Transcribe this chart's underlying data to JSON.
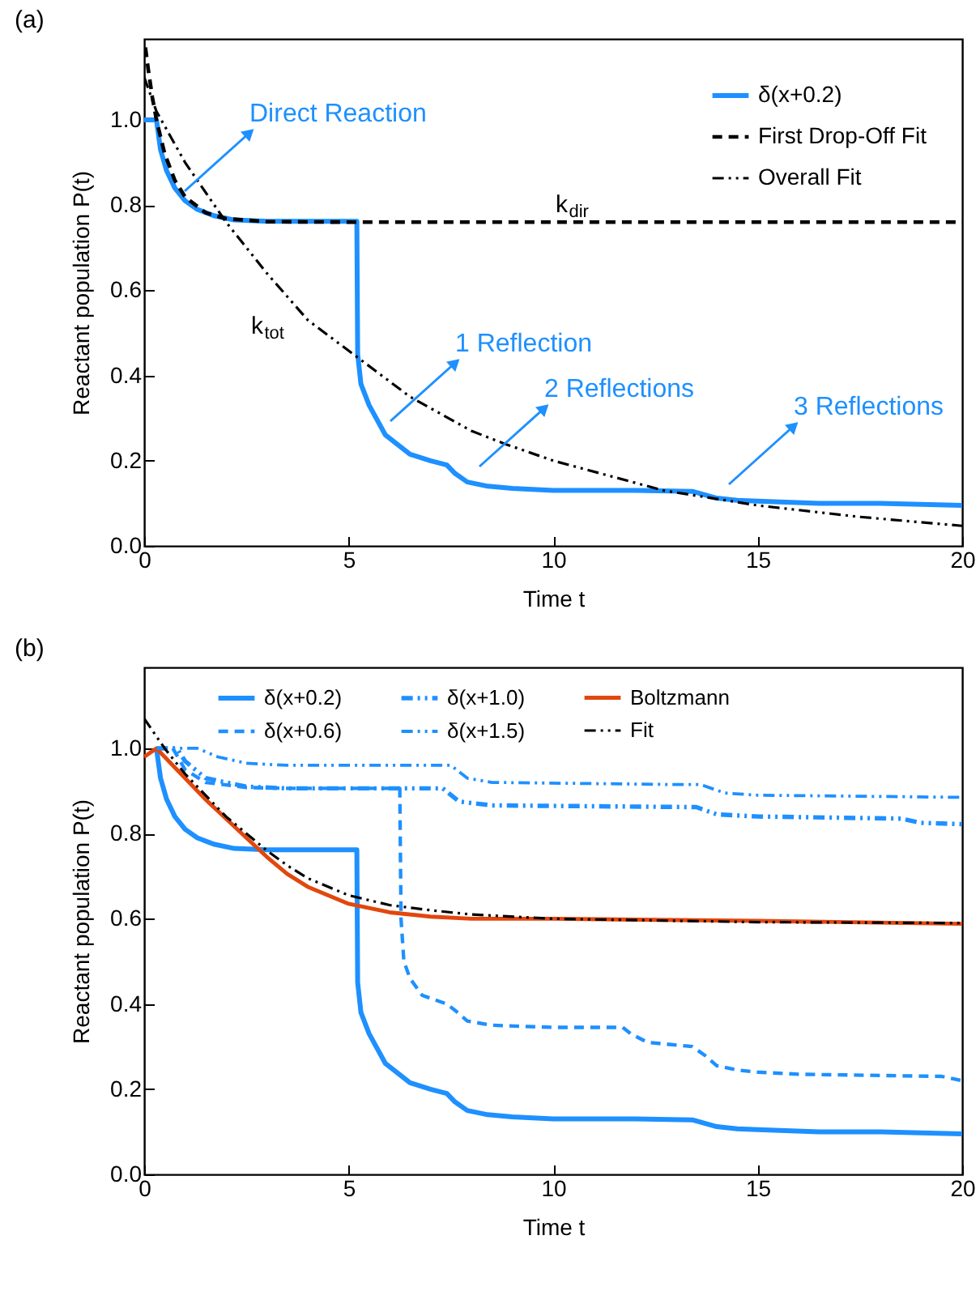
{
  "chart_data": [
    {
      "type": "line",
      "title": "(a)",
      "xlabel": "Time  t",
      "ylabel": "Reactant population  P(t)",
      "xlim": [
        0,
        20
      ],
      "ylim": [
        0,
        1.19
      ],
      "xticks": [
        0,
        5,
        10,
        15,
        20
      ],
      "yticks": [
        {
          "value": 0,
          "label": "0.0"
        },
        {
          "value": 0.2,
          "label": "0.2"
        },
        {
          "value": 0.4,
          "label": "0.4"
        },
        {
          "value": 0.6,
          "label": "0.6"
        },
        {
          "value": 0.8,
          "label": "0.8"
        },
        {
          "value": 1,
          "label": "1.0"
        }
      ],
      "legend": "top right",
      "series": [
        {
          "name": "δ(x+0.2)",
          "color": "#1e90ff",
          "line_style": "solid",
          "x": [
            0,
            0.3,
            0.4,
            0.55,
            0.75,
            1.0,
            1.3,
            1.7,
            2.2,
            3,
            5.2,
            5.22,
            5.3,
            5.5,
            5.9,
            6.5,
            7.0,
            7.4,
            7.6,
            7.9,
            8.4,
            9,
            10,
            12,
            13.4,
            13.7,
            14.0,
            14.5,
            15,
            16.5,
            18,
            20
          ],
          "values": [
            1.0,
            1.0,
            0.93,
            0.88,
            0.84,
            0.81,
            0.79,
            0.775,
            0.765,
            0.762,
            0.762,
            0.45,
            0.38,
            0.33,
            0.26,
            0.215,
            0.2,
            0.19,
            0.17,
            0.15,
            0.14,
            0.135,
            0.13,
            0.13,
            0.128,
            0.12,
            0.112,
            0.107,
            0.105,
            0.1,
            0.1,
            0.095
          ]
        },
        {
          "name": "First Drop-Off Fit",
          "color": "#000000",
          "line_style": "dashed",
          "x": [
            0.03,
            0.1,
            0.2,
            0.3,
            0.5,
            0.75,
            1,
            1.5,
            2,
            3,
            5,
            10,
            20
          ],
          "values": [
            1.17,
            1.118,
            1.053,
            1.0,
            0.921,
            0.858,
            0.819,
            0.782,
            0.768,
            0.761,
            0.76,
            0.76,
            0.76
          ]
        },
        {
          "name": "Overall Fit",
          "color": "#000000",
          "line_style": "dotted",
          "x": [
            0,
            0.3,
            1,
            2,
            3,
            4,
            5.25,
            6.5,
            8,
            8.8,
            10,
            12.7,
            15,
            17.5,
            20
          ],
          "values": [
            1.1,
            1.02,
            0.9,
            0.76,
            0.64,
            0.53,
            0.44,
            0.35,
            0.27,
            0.24,
            0.2,
            0.13,
            0.095,
            0.068,
            0.047
          ]
        }
      ],
      "annotations": [
        "Direct Reaction",
        "1 Reflection",
        "2 Reflections",
        "3 Reflections",
        "k$_{dir}$",
        "k$_{tot}$"
      ]
    },
    {
      "type": "line",
      "title": "(b)",
      "xlabel": "Time  t",
      "ylabel": "Reactant population  P(t)",
      "xlim": [
        0,
        20
      ],
      "ylim": [
        0,
        1.19
      ],
      "xticks": [
        0,
        5,
        10,
        15,
        20
      ],
      "yticks": [
        {
          "value": 0,
          "label": "0.0"
        },
        {
          "value": 0.2,
          "label": "0.2"
        },
        {
          "value": 0.4,
          "label": "0.4"
        },
        {
          "value": 0.6,
          "label": "0.6"
        },
        {
          "value": 0.8,
          "label": "0.8"
        },
        {
          "value": 1,
          "label": "1.0"
        }
      ],
      "legend": "top",
      "series": [
        {
          "name": "δ(x+0.2)",
          "color": "#1e90ff",
          "line_style": "solid",
          "x": [
            0.3,
            0.4,
            0.55,
            0.75,
            1.0,
            1.3,
            1.7,
            2.2,
            3,
            5.2,
            5.22,
            5.3,
            5.5,
            5.9,
            6.5,
            7.0,
            7.4,
            7.6,
            7.9,
            8.4,
            9,
            10,
            12,
            13.4,
            13.7,
            14.0,
            14.5,
            15,
            16.5,
            18,
            20
          ],
          "values": [
            1.0,
            0.93,
            0.88,
            0.84,
            0.81,
            0.79,
            0.775,
            0.765,
            0.762,
            0.762,
            0.45,
            0.38,
            0.33,
            0.26,
            0.215,
            0.2,
            0.19,
            0.17,
            0.15,
            0.14,
            0.135,
            0.13,
            0.13,
            0.128,
            0.12,
            0.112,
            0.107,
            0.105,
            0.1,
            0.1,
            0.095
          ]
        },
        {
          "name": "δ(x+1.0)",
          "color": "#1e90ff",
          "line_style": "dotted",
          "x": [
            0.3,
            0.8,
            1.0,
            1.5,
            2.5,
            3.5,
            7.3,
            7.7,
            8.5,
            13.5,
            14,
            15,
            18.5,
            19,
            20
          ],
          "values": [
            1.0,
            1.0,
            0.97,
            0.93,
            0.91,
            0.906,
            0.906,
            0.875,
            0.866,
            0.862,
            0.845,
            0.84,
            0.835,
            0.825,
            0.822
          ]
        },
        {
          "name": "Boltzmann",
          "color": "#e2470e",
          "line_style": "solid",
          "x": [
            0,
            0.3,
            0.6,
            1,
            1.5,
            2,
            2.5,
            3,
            3.5,
            4,
            4.5,
            5,
            6,
            7,
            8,
            10,
            15,
            20
          ],
          "values": [
            0.98,
            1.0,
            0.97,
            0.93,
            0.88,
            0.835,
            0.79,
            0.745,
            0.705,
            0.675,
            0.655,
            0.635,
            0.615,
            0.605,
            0.6,
            0.6,
            0.595,
            0.588
          ]
        },
        {
          "name": "δ(x+0.6)",
          "color": "#1e90ff",
          "line_style": "dashed",
          "x": [
            0.3,
            0.7,
            1.0,
            1.5,
            2.5,
            3.5,
            6.25,
            6.28,
            6.35,
            6.5,
            6.8,
            7.4,
            7.6,
            7.9,
            8.5,
            10,
            11.7,
            11.9,
            12.3,
            13.4,
            13.7,
            14,
            14.5,
            15,
            16,
            19.5,
            20
          ],
          "values": [
            1.0,
            1.0,
            0.95,
            0.92,
            0.908,
            0.906,
            0.906,
            0.6,
            0.5,
            0.46,
            0.42,
            0.4,
            0.385,
            0.36,
            0.35,
            0.345,
            0.345,
            0.33,
            0.31,
            0.3,
            0.28,
            0.255,
            0.245,
            0.24,
            0.235,
            0.23,
            0.22
          ]
        },
        {
          "name": "δ(x+1.5)",
          "color": "#1e90ff",
          "line_style": "dotted",
          "x": [
            0.3,
            1.3,
            1.8,
            2.5,
            3.5,
            7.5,
            7.9,
            8.5,
            13,
            13.6,
            14.2,
            15,
            20
          ],
          "values": [
            1.0,
            1.0,
            0.98,
            0.965,
            0.96,
            0.96,
            0.93,
            0.92,
            0.915,
            0.915,
            0.895,
            0.89,
            0.885
          ]
        },
        {
          "name": "Fit",
          "color": "#000000",
          "line_style": "dotted",
          "x": [
            0,
            0.5,
            1,
            1.5,
            2,
            2.5,
            3,
            3.5,
            4,
            5,
            6,
            7,
            8,
            10,
            15,
            20
          ],
          "values": [
            1.07,
            1.0,
            0.94,
            0.89,
            0.84,
            0.8,
            0.76,
            0.725,
            0.695,
            0.655,
            0.632,
            0.62,
            0.61,
            0.6,
            0.592,
            0.59
          ]
        }
      ]
    }
  ]
}
